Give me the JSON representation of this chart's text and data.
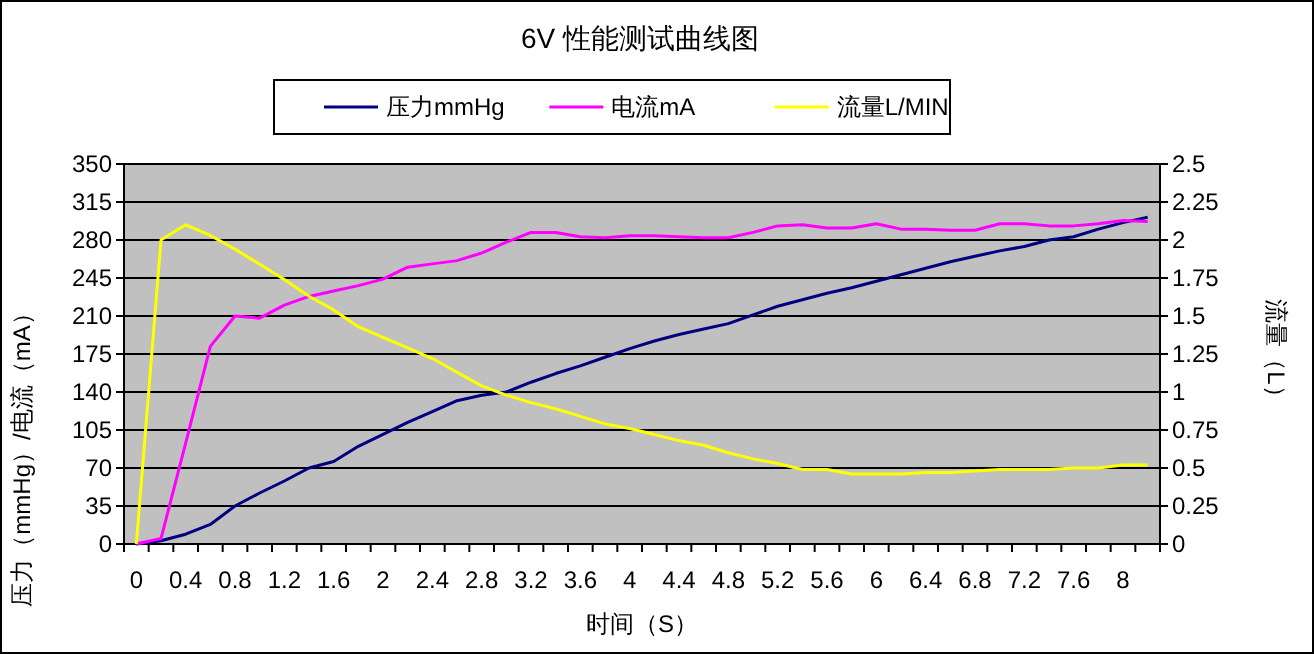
{
  "chart_data": {
    "type": "line",
    "title": "6V 性能测试曲线图",
    "xlabel": "时间（S）",
    "ylabel": "压力（mmHg）/电流（mA）",
    "y2label": "流量（L）",
    "categories": [
      "0",
      null,
      "0.4",
      null,
      "0.8",
      null,
      "1.2",
      null,
      "1.6",
      null,
      "2",
      null,
      "2.4",
      null,
      "2.8",
      null,
      "3.2",
      null,
      "3.6",
      null,
      "4",
      null,
      "4.4",
      null,
      "4.8",
      null,
      "5.2",
      null,
      "5.6",
      null,
      "6",
      null,
      "6.4",
      null,
      "6.8",
      null,
      "7.2",
      null,
      "7.6",
      null,
      "8",
      null
    ],
    "series": [
      {
        "name": "压力mmHg",
        "color": "#000080",
        "values": [
          0,
          3,
          9,
          18,
          35,
          47,
          58,
          70,
          76,
          90,
          101,
          112,
          122,
          132,
          137,
          140,
          149,
          157,
          164,
          172,
          180,
          187,
          193,
          198,
          203,
          211,
          219,
          225,
          231,
          236,
          242,
          248,
          254,
          260,
          265,
          270,
          274,
          280,
          283,
          290,
          296,
          301
        ]
      },
      {
        "name": "电流mA",
        "color": "#ff00ff",
        "values": [
          0,
          5,
          93,
          182,
          210,
          208,
          220,
          228,
          233,
          238,
          244,
          255,
          258,
          261,
          268,
          278,
          287,
          287,
          283,
          282,
          284,
          284,
          283,
          282,
          282,
          287,
          293,
          294,
          291,
          291,
          295,
          290,
          290,
          289,
          289,
          295,
          295,
          293,
          293,
          295,
          298,
          297
        ]
      },
      {
        "name": "流量L/MIN",
        "color": "#ffff00",
        "axis": "y2",
        "values": [
          0,
          2.0,
          2.1,
          2.03,
          1.94,
          1.84,
          1.74,
          1.63,
          1.54,
          1.43,
          1.36,
          1.29,
          1.22,
          1.13,
          1.04,
          0.98,
          0.93,
          0.89,
          0.84,
          0.79,
          0.76,
          0.72,
          0.68,
          0.65,
          0.6,
          0.56,
          0.53,
          0.49,
          0.49,
          0.46,
          0.46,
          0.46,
          0.47,
          0.47,
          0.48,
          0.49,
          0.49,
          0.49,
          0.5,
          0.5,
          0.52,
          0.52
        ]
      }
    ],
    "ylim": [
      0,
      350
    ],
    "yticks": [
      0,
      35,
      70,
      105,
      140,
      175,
      210,
      245,
      280,
      315,
      350
    ],
    "y2lim": [
      0,
      2.5
    ],
    "y2ticks": [
      0,
      0.25,
      0.5,
      0.75,
      1,
      1.25,
      1.5,
      1.75,
      2,
      2.25,
      2.5
    ],
    "grid": "y",
    "legend": "top"
  }
}
